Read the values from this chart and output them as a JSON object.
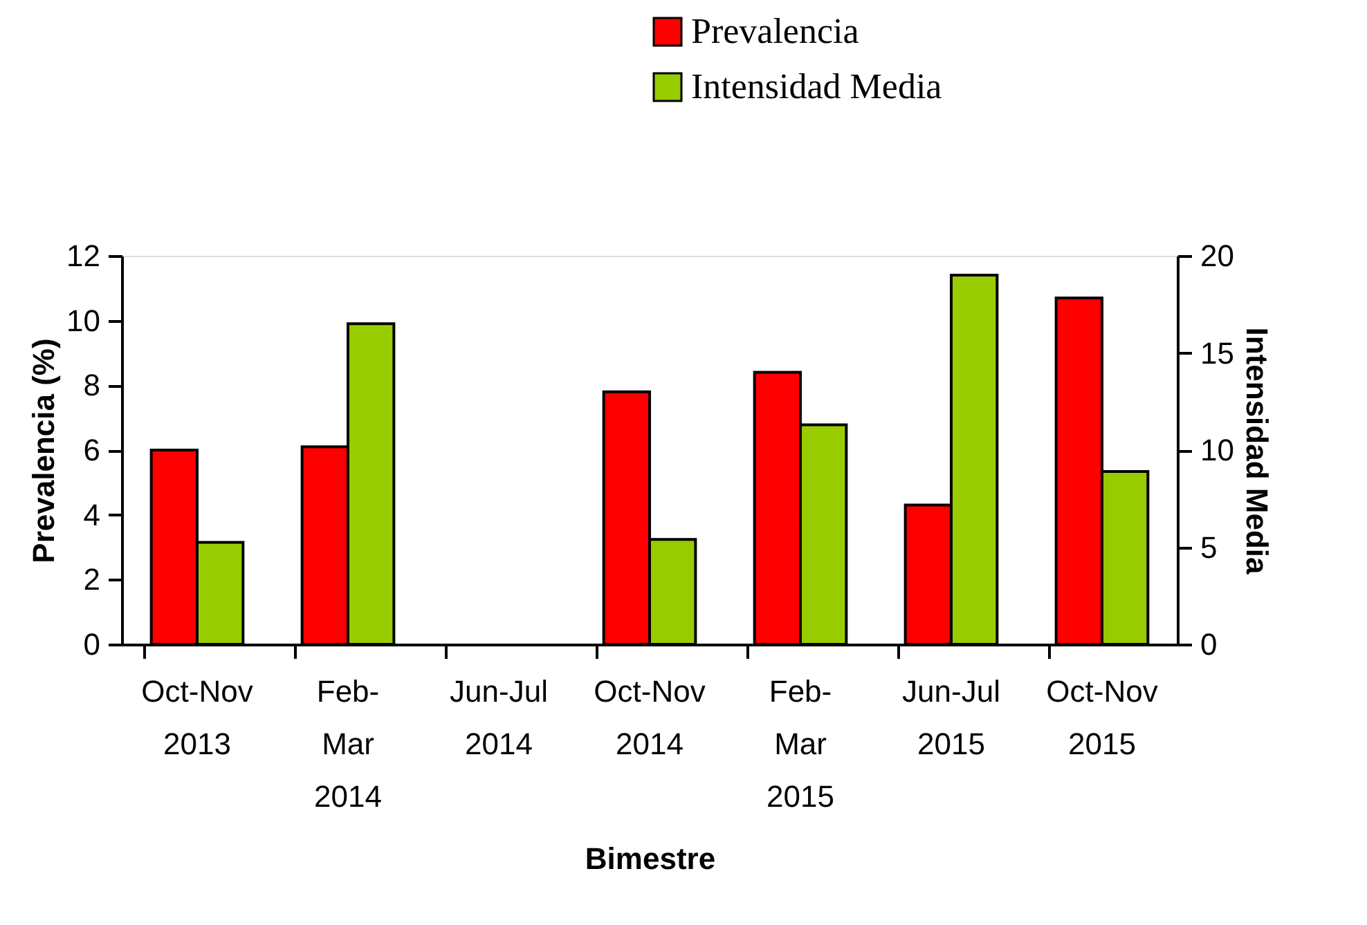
{
  "chart_data": {
    "type": "bar",
    "xlabel": "Bimestre",
    "ylabel": "Prevalencia (%)",
    "y2label": "Intensidad Media",
    "categories": [
      "Oct-Nov\n2013",
      "Feb-\nMar\n2014",
      "Jun-Jul\n2014",
      "Oct-Nov\n2014",
      "Feb-\nMar\n2015",
      "Jun-Jul\n2015",
      "Oct-Nov\n2015"
    ],
    "series": [
      {
        "name": "Prevalencia",
        "color": "#ff0000",
        "values": [
          6.0,
          6.1,
          null,
          7.8,
          8.4,
          4.3,
          10.7
        ]
      },
      {
        "name": "Intensidad Media",
        "color": "#99cc00",
        "axis": "y2",
        "values": [
          5.25,
          16.5,
          null,
          5.4,
          11.3,
          19.0,
          8.9
        ]
      }
    ],
    "ylim": [
      0,
      12
    ],
    "yticks": [
      0,
      2,
      4,
      6,
      8,
      10,
      12
    ],
    "y2lim": [
      0,
      20
    ],
    "y2ticks": [
      0,
      5,
      10,
      15,
      20
    ],
    "grid": false,
    "legend": "top right"
  }
}
